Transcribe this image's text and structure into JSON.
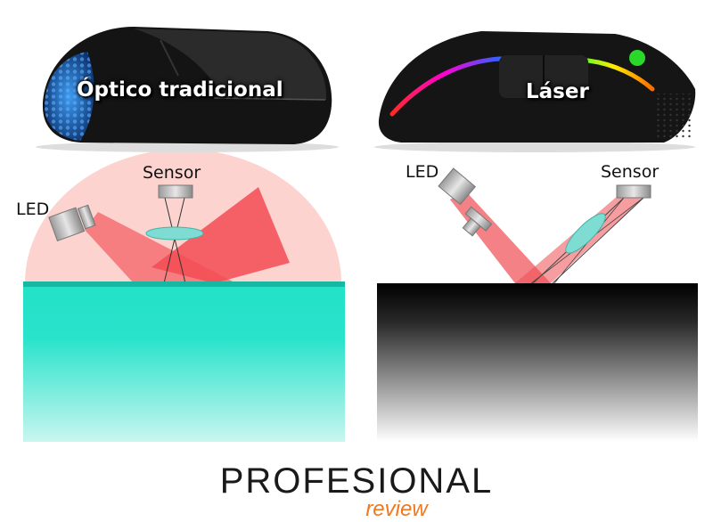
{
  "left_panel": {
    "title": "Óptico tradicional",
    "led_label": "LED",
    "sensor_label": "Sensor",
    "surface_color": "#22e3c8",
    "beam_color": "#f24b52",
    "halo_color": "#fcd0cc",
    "accent_color": "#2f8de0"
  },
  "right_panel": {
    "title": "Láser",
    "led_label": "LED",
    "sensor_label": "Sensor",
    "surface_color": "#000000",
    "beam_color": "#ee4c52",
    "lens_color": "#7fdcd2"
  },
  "logo": {
    "name": "PROFESIONAL",
    "tagline": "review",
    "tagline_color": "#f0781e"
  }
}
